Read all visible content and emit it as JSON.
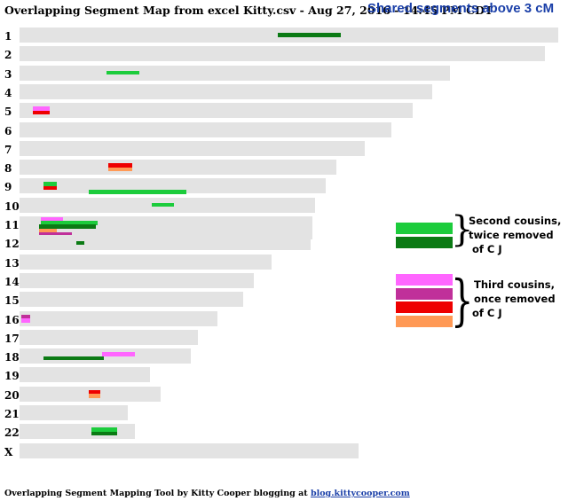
{
  "title": "Overlapping Segment Map from excel Kitty.csv - Aug 27, 2016 - 14:45 PM CDT",
  "subtitle": "Shared segments above 3 cM",
  "colors": {
    "chrom_bar": "#e3e3e3",
    "second_cousin_a": "#1ccc3c",
    "second_cousin_b": "#0b7a14",
    "third_cousin_a": "#ff66ff",
    "third_cousin_b": "#c0309a",
    "third_cousin_c": "#ee0000",
    "third_cousin_d": "#ff9955"
  },
  "legend": {
    "groups": [
      {
        "lines": [
          "Second cousins,",
          "twice removed",
          "of C J"
        ],
        "swatches": [
          "#1ccc3c",
          "#0b7a14"
        ]
      },
      {
        "lines": [
          "Third cousins,",
          "once removed",
          "of C J"
        ],
        "swatches": [
          "#ff66ff",
          "#c0309a",
          "#ee0000",
          "#ff9955"
        ]
      }
    ]
  },
  "chart_data": {
    "type": "segment-map",
    "chromosomes": [
      {
        "label": "1",
        "length": 248,
        "segments": [
          {
            "start": 119,
            "end": 148,
            "color": "#0b7a14"
          }
        ]
      },
      {
        "label": "2",
        "length": 242,
        "segments": []
      },
      {
        "label": "3",
        "length": 198,
        "segments": [
          {
            "start": 40,
            "end": 55,
            "color": "#1ccc3c"
          }
        ]
      },
      {
        "label": "4",
        "length": 190,
        "segments": []
      },
      {
        "label": "5",
        "length": 181,
        "segments": [
          {
            "start": 6,
            "end": 14,
            "color": "#ff66ff"
          },
          {
            "start": 6,
            "end": 14,
            "color": "#ee0000"
          }
        ]
      },
      {
        "label": "6",
        "length": 171,
        "segments": []
      },
      {
        "label": "7",
        "length": 159,
        "segments": []
      },
      {
        "label": "8",
        "length": 146,
        "segments": [
          {
            "start": 41,
            "end": 52,
            "color": "#ee0000"
          },
          {
            "start": 41,
            "end": 52,
            "color": "#ff9955"
          }
        ]
      },
      {
        "label": "9",
        "length": 141,
        "segments": [
          {
            "start": 11,
            "end": 17,
            "color": "#1ccc3c"
          },
          {
            "start": 11,
            "end": 17,
            "color": "#ee0000"
          },
          {
            "start": 32,
            "end": 77,
            "color": "#1ccc3c"
          }
        ]
      },
      {
        "label": "10",
        "length": 136,
        "segments": [
          {
            "start": 61,
            "end": 71,
            "color": "#1ccc3c"
          }
        ]
      },
      {
        "label": "11",
        "length": 135,
        "segments": [
          {
            "start": 10,
            "end": 20,
            "color": "#ff66ff"
          },
          {
            "start": 10,
            "end": 36,
            "color": "#1ccc3c"
          },
          {
            "start": 9,
            "end": 35,
            "color": "#0b7a14"
          },
          {
            "start": 9,
            "end": 17,
            "color": "#ff9955"
          },
          {
            "start": 9,
            "end": 24,
            "color": "#c0309a"
          },
          {
            "start": 9,
            "end": 24,
            "color": "#ee0000"
          }
        ]
      },
      {
        "label": "12",
        "length": 134,
        "segments": [
          {
            "start": 26,
            "end": 30,
            "color": "#0b7a14"
          }
        ]
      },
      {
        "label": "13",
        "length": 116,
        "segments": []
      },
      {
        "label": "14",
        "length": 108,
        "segments": []
      },
      {
        "label": "15",
        "length": 103,
        "segments": []
      },
      {
        "label": "16",
        "length": 91,
        "segments": [
          {
            "start": 1,
            "end": 5,
            "color": "#c0309a"
          },
          {
            "start": 1,
            "end": 5,
            "color": "#ff66ff"
          }
        ]
      },
      {
        "label": "17",
        "length": 82,
        "segments": []
      },
      {
        "label": "18",
        "length": 79,
        "segments": [
          {
            "start": 38,
            "end": 53,
            "color": "#ff66ff"
          },
          {
            "start": 11,
            "end": 39,
            "color": "#0b7a14"
          }
        ]
      },
      {
        "label": "19",
        "length": 60,
        "segments": []
      },
      {
        "label": "20",
        "length": 65,
        "segments": [
          {
            "start": 32,
            "end": 37,
            "color": "#ee0000"
          },
          {
            "start": 32,
            "end": 37,
            "color": "#ff9955"
          }
        ]
      },
      {
        "label": "21",
        "length": 50,
        "segments": []
      },
      {
        "label": "22",
        "length": 53,
        "segments": [
          {
            "start": 33,
            "end": 45,
            "color": "#1ccc3c"
          },
          {
            "start": 33,
            "end": 45,
            "color": "#0b7a14"
          }
        ]
      },
      {
        "label": "X",
        "length": 156,
        "segments": []
      }
    ]
  },
  "footer": {
    "text": "Overlapping Segment Mapping Tool by Kitty Cooper blogging at ",
    "link_text": "blog.kittycooper.com"
  }
}
